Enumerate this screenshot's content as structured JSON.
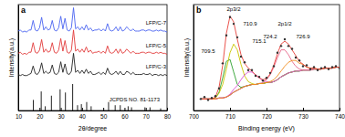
{
  "chart_data": [
    {
      "type": "line",
      "title": "a",
      "x_label": "2θ/degree",
      "y_label": "Intensity(a.u.)",
      "x": [
        10,
        11,
        12,
        13,
        14,
        15,
        16,
        17,
        18,
        19,
        20,
        21,
        22,
        23,
        24,
        25,
        26,
        27,
        28,
        29,
        30,
        31,
        32,
        33,
        34,
        35,
        36,
        37,
        38,
        39,
        40,
        41,
        42,
        43,
        44,
        45,
        46,
        47,
        48,
        49,
        50,
        51,
        52,
        53,
        54,
        55,
        56,
        57,
        58,
        59,
        60,
        61,
        62,
        63,
        64,
        65,
        66,
        67,
        68,
        69,
        70,
        71,
        72,
        73,
        74,
        75,
        76,
        77,
        78,
        79,
        80
      ],
      "xlim": [
        10,
        80
      ],
      "xticks": [
        10,
        20,
        30,
        40,
        50,
        60,
        70,
        80
      ],
      "ylim": [
        0,
        100
      ],
      "tick_labels": "x",
      "series": [
        {
          "name": "LFP/C-7",
          "color": "#4a63f0",
          "values": [
            75,
            76,
            74,
            75,
            74,
            76,
            76,
            85,
            76,
            75,
            78,
            88,
            76,
            79,
            76,
            77,
            85,
            76,
            75,
            78,
            89,
            77,
            87,
            76,
            75,
            78,
            97,
            77,
            79,
            76,
            79,
            76,
            81,
            76,
            78,
            75,
            76,
            76,
            77,
            75,
            77,
            75,
            82,
            76,
            75,
            76,
            79,
            75,
            79,
            75,
            76,
            79,
            77,
            75,
            77,
            75,
            75,
            75,
            76,
            76,
            75,
            76,
            76,
            75,
            75,
            76,
            75,
            76,
            75,
            75,
            74
          ]
        },
        {
          "name": "LFP/C-5",
          "color": "#e23b3b",
          "values": [
            54,
            55,
            53,
            54,
            53,
            55,
            55,
            64,
            55,
            54,
            57,
            67,
            55,
            58,
            55,
            56,
            64,
            55,
            54,
            57,
            68,
            56,
            66,
            55,
            54,
            57,
            76,
            56,
            58,
            55,
            58,
            55,
            60,
            55,
            57,
            54,
            55,
            55,
            56,
            54,
            56,
            54,
            61,
            55,
            54,
            55,
            58,
            54,
            58,
            54,
            55,
            58,
            56,
            54,
            56,
            54,
            54,
            54,
            55,
            55,
            54,
            55,
            55,
            54,
            54,
            55,
            54,
            55,
            54,
            54,
            53
          ]
        },
        {
          "name": "LFP/C-3",
          "color": "#222222",
          "values": [
            34,
            33,
            34,
            33,
            33,
            34,
            35,
            42,
            35,
            34,
            37,
            45,
            35,
            37,
            35,
            36,
            43,
            35,
            34,
            36,
            46,
            36,
            44,
            35,
            34,
            37,
            54,
            36,
            38,
            35,
            38,
            35,
            39,
            35,
            37,
            34,
            34,
            35,
            36,
            34,
            36,
            34,
            40,
            35,
            34,
            35,
            37,
            34,
            37,
            34,
            34,
            37,
            36,
            34,
            36,
            34,
            34,
            34,
            34,
            35,
            34,
            34,
            35,
            33,
            34,
            34,
            33,
            34,
            33,
            34,
            33
          ]
        },
        {
          "name": "JCPDS NO. 81-1173",
          "type": "bar",
          "color": "#222222",
          "x": [
            17.1,
            20.8,
            22.7,
            25.6,
            29.7,
            32.2,
            35.6,
            37.9,
            39.7,
            42.2,
            44.3,
            52.5,
            55.6,
            58.0,
            61.7,
            63.3,
            69.6,
            72.0,
            77.0
          ],
          "values": [
            10,
            18,
            4,
            14,
            20,
            17,
            25,
            5,
            6,
            8,
            4,
            8,
            5,
            5,
            4,
            3,
            3,
            3,
            2
          ]
        }
      ]
    },
    {
      "type": "line",
      "title": "b",
      "x_label": "Binding energy (eV)",
      "y_label": "Intensity(a.u.)",
      "x": [
        702,
        703,
        704,
        705,
        706,
        707,
        708,
        709,
        710,
        711,
        712,
        713,
        714,
        715,
        716,
        717,
        718,
        719,
        720,
        721,
        722,
        723,
        724,
        725,
        726,
        727,
        728,
        729,
        730,
        731,
        732,
        733,
        734,
        735,
        736,
        737,
        738,
        739,
        740
      ],
      "xlim": [
        700,
        740
      ],
      "xticks": [
        700,
        710,
        720,
        730,
        740
      ],
      "ylim": [
        0,
        110
      ],
      "tick_labels": "x",
      "series": [
        {
          "color": "#2f5be8",
          "values": [
            12,
            12,
            12,
            12,
            12,
            13,
            13,
            14,
            16,
            19,
            21,
            23,
            25,
            26,
            27,
            27,
            28,
            28,
            29,
            29,
            30,
            32,
            35,
            37,
            39,
            40,
            41,
            41,
            42,
            42,
            42,
            43,
            43,
            43,
            44,
            44,
            44,
            45,
            45
          ]
        },
        {
          "color": "#2ca02c",
          "values": [
            12,
            12,
            12,
            12,
            13,
            19,
            34,
            51,
            53,
            40,
            27,
            24,
            25,
            26,
            27,
            27,
            28,
            28,
            29,
            29,
            30,
            32,
            35,
            37,
            39,
            40,
            41,
            41,
            42,
            42,
            42,
            43,
            43,
            43,
            44,
            44,
            44,
            45,
            45
          ]
        },
        {
          "color": "#c9c400",
          "values": [
            12,
            12,
            12,
            12,
            13,
            18,
            27,
            43,
            60,
            69,
            63,
            48,
            36,
            30,
            28,
            27,
            28,
            28,
            29,
            29,
            30,
            32,
            35,
            37,
            39,
            40,
            41,
            41,
            42,
            42,
            42,
            43,
            43,
            43,
            44,
            44,
            44,
            45,
            45
          ]
        },
        {
          "color": "#d94fd0",
          "values": [
            12,
            12,
            12,
            12,
            12,
            13,
            13,
            14,
            17,
            22,
            26,
            32,
            37,
            40,
            40,
            37,
            34,
            31,
            30,
            29,
            30,
            32,
            35,
            37,
            39,
            40,
            41,
            41,
            42,
            42,
            42,
            43,
            43,
            43,
            44,
            44,
            44,
            45,
            45
          ]
        },
        {
          "color": "#e8668a",
          "values": [
            12,
            12,
            12,
            12,
            12,
            13,
            13,
            14,
            16,
            19,
            21,
            23,
            25,
            26,
            27,
            27,
            28,
            29,
            32,
            37,
            45,
            55,
            63,
            63,
            58,
            51,
            46,
            43,
            42,
            42,
            42,
            43,
            43,
            43,
            44,
            44,
            44,
            45,
            45
          ]
        },
        {
          "color": "#f08c1e",
          "values": [
            12,
            12,
            12,
            12,
            12,
            13,
            13,
            14,
            16,
            19,
            21,
            23,
            25,
            26,
            27,
            27,
            28,
            28,
            29,
            30,
            32,
            36,
            41,
            46,
            50,
            52,
            52,
            49,
            48,
            45,
            44,
            44,
            43,
            43,
            44,
            44,
            44,
            45,
            45
          ]
        },
        {
          "color": "#e8413a",
          "values": [
            12,
            12,
            12,
            12,
            14,
            24,
            47,
            80,
            98,
            92,
            74,
            58,
            49,
            44,
            41,
            37,
            34,
            32,
            33,
            38,
            47,
            59,
            69,
            72,
            69,
            63,
            57,
            51,
            48,
            45,
            44,
            44,
            43,
            43,
            44,
            44,
            44,
            45,
            45
          ]
        },
        {
          "type": "scatter",
          "marker": "circle",
          "color": "#333333",
          "values": [
            12,
            14,
            11,
            13,
            15,
            23,
            49,
            78,
            97,
            90,
            76,
            56,
            50,
            42,
            42,
            36,
            35,
            31,
            34,
            39,
            46,
            60,
            67,
            74,
            67,
            64,
            55,
            52,
            46,
            47,
            43,
            45,
            42,
            44,
            45,
            43,
            45,
            46,
            44
          ]
        }
      ],
      "annotations": [
        {
          "text": "2p3/2",
          "x": 711,
          "y": 103
        },
        {
          "text": "710.9",
          "x": 715.5,
          "y": 88
        },
        {
          "text": "715.1",
          "x": 718,
          "y": 70
        },
        {
          "text": "709.5",
          "x": 704,
          "y": 60
        },
        {
          "text": "724.2",
          "x": 721,
          "y": 75
        },
        {
          "text": "2p1/2",
          "x": 725,
          "y": 88
        },
        {
          "text": "726.9",
          "x": 730,
          "y": 75
        }
      ]
    }
  ]
}
